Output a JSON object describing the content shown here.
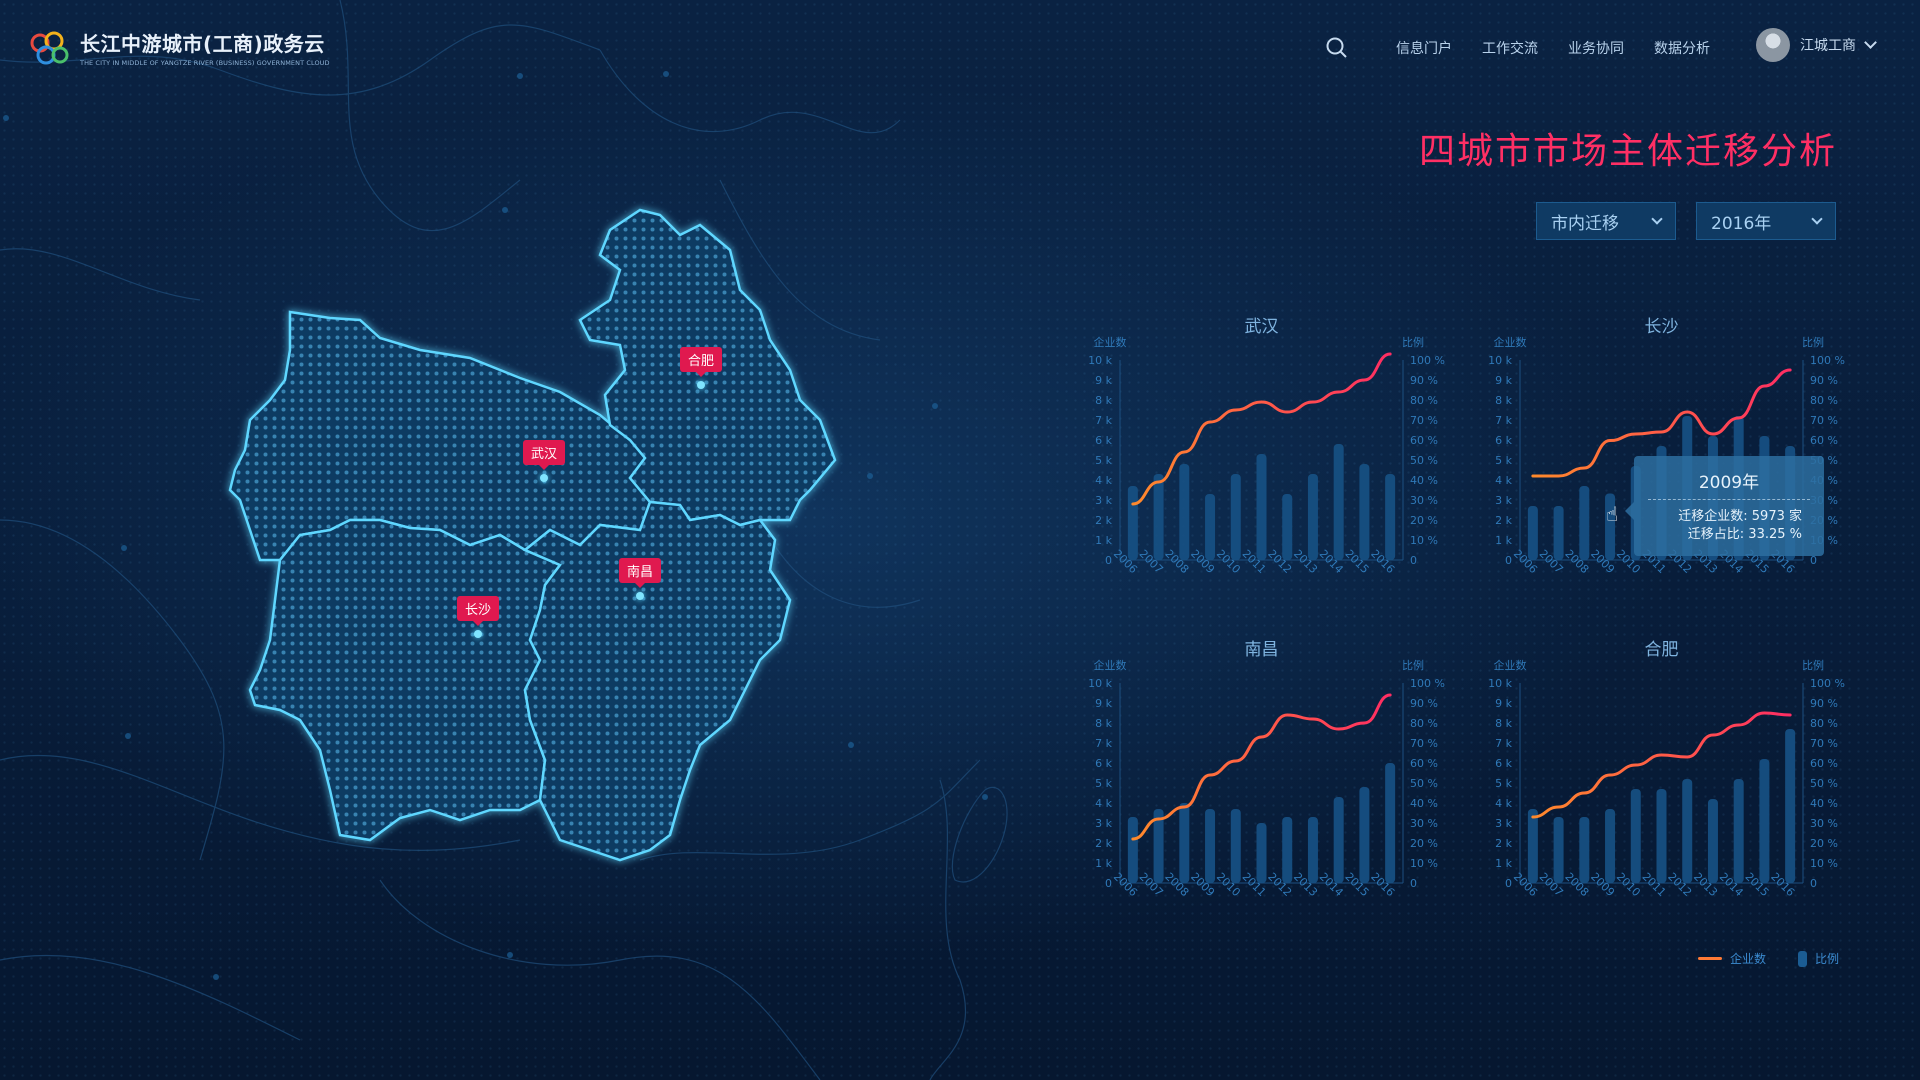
{
  "header": {
    "app_title": "长江中游城市(工商)政务云",
    "app_subtitle": "THE CITY IN MIDDLE OF YANGTZE RIVER (BUSINESS) GOVERNMENT CLOUD",
    "nav": [
      "信息门户",
      "工作交流",
      "业务协同",
      "数据分析"
    ],
    "user_name": "江城工商"
  },
  "page_title": "四城市市场主体迁移分析",
  "filters": {
    "migration_type": "市内迁移",
    "year": "2016年"
  },
  "map": {
    "cities": [
      {
        "name": "合肥"
      },
      {
        "name": "武汉"
      },
      {
        "name": "南昌"
      },
      {
        "name": "长沙"
      }
    ]
  },
  "tooltip": {
    "year": "2009年",
    "count_label": "迁移企业数:",
    "count_value": "5973 家",
    "ratio_label": "迁移占比:",
    "ratio_value": "33.25 %"
  },
  "legend": {
    "line_label": "企业数",
    "bar_label": "比例"
  },
  "chart_data": [
    {
      "type": "bar+line",
      "title": "武汉",
      "left_axis_label": "企业数",
      "right_axis_label": "比例",
      "left_ticks": [
        "0",
        "1 k",
        "2 k",
        "3 k",
        "4 k",
        "5 k",
        "6 k",
        "7 k",
        "8 k",
        "9 k",
        "10 k"
      ],
      "right_ticks": [
        "0",
        "10 %",
        "20 %",
        "30 %",
        "40 %",
        "50 %",
        "60 %",
        "70 %",
        "80 %",
        "90 %",
        "100 %"
      ],
      "categories": [
        "2006",
        "2007",
        "2008",
        "2009",
        "2010",
        "2011",
        "2012",
        "2013",
        "2014",
        "2015",
        "2016"
      ],
      "series": [
        {
          "name": "企业数",
          "type": "line",
          "values": [
            2800,
            3900,
            5400,
            6900,
            7500,
            7900,
            7400,
            7900,
            8400,
            9000,
            10300
          ]
        },
        {
          "name": "比例",
          "type": "bar",
          "values": [
            37,
            43,
            48,
            33,
            43,
            53,
            33,
            43,
            58,
            48,
            43
          ]
        }
      ],
      "ylim": [
        0,
        10000
      ]
    },
    {
      "type": "bar+line",
      "title": "长沙",
      "left_axis_label": "企业数",
      "right_axis_label": "比例",
      "left_ticks": [
        "0",
        "1 k",
        "2 k",
        "3 k",
        "4 k",
        "5 k",
        "6 k",
        "7 k",
        "8 k",
        "9 k",
        "10 k"
      ],
      "right_ticks": [
        "0",
        "10 %",
        "20 %",
        "30 %",
        "40 %",
        "50 %",
        "60 %",
        "70 %",
        "80 %",
        "90 %",
        "100 %"
      ],
      "categories": [
        "2006",
        "2007",
        "2008",
        "2009",
        "2010",
        "2011",
        "2012",
        "2013",
        "2014",
        "2015",
        "2016"
      ],
      "series": [
        {
          "name": "企业数",
          "type": "line",
          "values": [
            4200,
            4200,
            4600,
            5973,
            6300,
            6400,
            7400,
            6300,
            7100,
            8700,
            9500
          ]
        },
        {
          "name": "比例",
          "type": "bar",
          "values": [
            27,
            27,
            37,
            33.25,
            47,
            57,
            72,
            62,
            72,
            62,
            57
          ]
        }
      ],
      "ylim": [
        0,
        10000
      ]
    },
    {
      "type": "bar+line",
      "title": "南昌",
      "left_axis_label": "企业数",
      "right_axis_label": "比例",
      "left_ticks": [
        "0",
        "1 k",
        "2 k",
        "3 k",
        "4 k",
        "5 k",
        "6 k",
        "7 k",
        "8 k",
        "9 k",
        "10 k"
      ],
      "right_ticks": [
        "0",
        "10 %",
        "20 %",
        "30 %",
        "40 %",
        "50 %",
        "60 %",
        "70 %",
        "80 %",
        "90 %",
        "100 %"
      ],
      "categories": [
        "2006",
        "2007",
        "2008",
        "2009",
        "2010",
        "2011",
        "2012",
        "2013",
        "2014",
        "2015",
        "2016"
      ],
      "series": [
        {
          "name": "企业数",
          "type": "line",
          "values": [
            2200,
            3200,
            3800,
            5400,
            6100,
            7300,
            8400,
            8200,
            7700,
            8000,
            9400
          ]
        },
        {
          "name": "比例",
          "type": "bar",
          "values": [
            33,
            37,
            40,
            37,
            37,
            30,
            33,
            33,
            43,
            48,
            60
          ]
        }
      ],
      "ylim": [
        0,
        10000
      ]
    },
    {
      "type": "bar+line",
      "title": "合肥",
      "left_axis_label": "企业数",
      "right_axis_label": "比例",
      "left_ticks": [
        "0",
        "1 k",
        "2 k",
        "3 k",
        "4 k",
        "5 k",
        "6 k",
        "7 k",
        "8 k",
        "9 k",
        "10 k"
      ],
      "right_ticks": [
        "0",
        "10 %",
        "20 %",
        "30 %",
        "40 %",
        "50 %",
        "60 %",
        "70 %",
        "80 %",
        "90 %",
        "100 %"
      ],
      "categories": [
        "2006",
        "2007",
        "2008",
        "2009",
        "2010",
        "2011",
        "2012",
        "2013",
        "2014",
        "2015",
        "2016"
      ],
      "series": [
        {
          "name": "企业数",
          "type": "line",
          "values": [
            3300,
            3800,
            4500,
            5400,
            5900,
            6400,
            6300,
            7400,
            7900,
            8500,
            8400
          ]
        },
        {
          "name": "比例",
          "type": "bar",
          "values": [
            37,
            33,
            33,
            37,
            47,
            47,
            52,
            42,
            52,
            62,
            77
          ]
        }
      ],
      "ylim": [
        0,
        10000
      ]
    }
  ]
}
